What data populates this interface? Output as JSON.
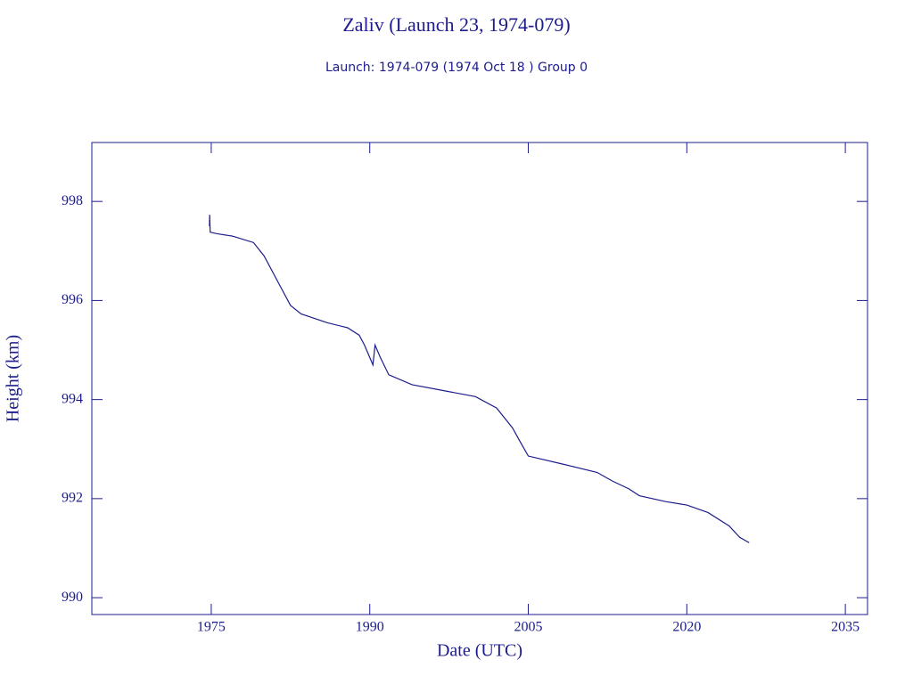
{
  "chart_data": {
    "type": "line",
    "title": "Zaliv (Launch 23, 1974-079)",
    "subtitle": "Launch: 1974-079  (1974 Oct 18 )  Group 0",
    "x_label": "Date (UTC)",
    "y_label": "Height (km)",
    "xlim": [
      1963.7,
      2037.1
    ],
    "ylim": [
      989.66,
      999.19
    ],
    "xticks": [
      1975,
      1990,
      2005,
      2020,
      2035
    ],
    "yticks": [
      990,
      992,
      994,
      996,
      998
    ],
    "color": "#1c1c8c",
    "series": [
      {
        "name": "Zaliv",
        "color": "#1c1c8c",
        "x": [
          1974.83,
          1974.85,
          1974.9,
          1975.5,
          1977,
          1979,
          1980,
          1981.5,
          1982.5,
          1983.5,
          1986,
          1987.9,
          1989,
          1989.5,
          1990.3,
          1990.5,
          1991,
          1991.8,
          1994,
          1997,
          2000,
          2002,
          2003.5,
          2004.2,
          2005,
          2008,
          2011.5,
          2013,
          2014.5,
          2015.5,
          2018,
          2020,
          2022,
          2024,
          2025,
          2025.9
        ],
        "values": [
          997.5,
          997.73,
          997.38,
          997.35,
          997.3,
          997.17,
          996.9,
          996.3,
          995.9,
          995.73,
          995.55,
          995.45,
          995.3,
          995.1,
          994.7,
          995.1,
          994.85,
          994.5,
          994.3,
          994.18,
          994.06,
          993.83,
          993.43,
          993.16,
          992.86,
          992.71,
          992.53,
          992.35,
          992.2,
          992.06,
          991.94,
          991.87,
          991.72,
          991.45,
          991.22,
          991.11
        ]
      }
    ]
  }
}
